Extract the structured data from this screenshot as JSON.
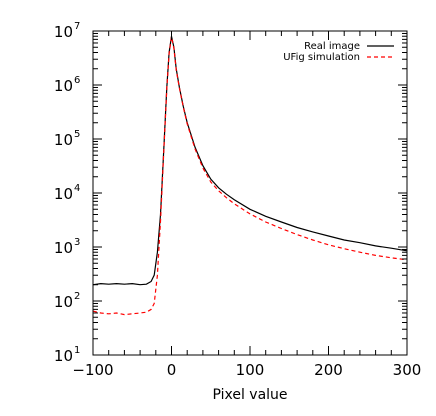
{
  "chart_data": {
    "type": "line",
    "title": "",
    "xlabel": "Pixel value",
    "ylabel": "",
    "xlim": [
      -100,
      300
    ],
    "ylim": [
      10,
      10000000
    ],
    "yscale": "log",
    "grid": false,
    "legend_position": "top-right",
    "x_ticks": [
      {
        "value": -100,
        "label": "−100"
      },
      {
        "value": 0,
        "label": "0"
      },
      {
        "value": 100,
        "label": "100"
      },
      {
        "value": 200,
        "label": "200"
      },
      {
        "value": 300,
        "label": "300"
      }
    ],
    "y_ticks": [
      {
        "value": 10,
        "base": "10",
        "exp": "1"
      },
      {
        "value": 100,
        "base": "10",
        "exp": "2"
      },
      {
        "value": 1000,
        "base": "10",
        "exp": "3"
      },
      {
        "value": 10000,
        "base": "10",
        "exp": "4"
      },
      {
        "value": 100000,
        "base": "10",
        "exp": "5"
      },
      {
        "value": 1000000,
        "base": "10",
        "exp": "6"
      },
      {
        "value": 10000000,
        "base": "10",
        "exp": "7"
      }
    ],
    "series": [
      {
        "name": "Real image",
        "color": "#000000",
        "dash": "solid",
        "x": [
          -100,
          -90,
          -80,
          -70,
          -60,
          -50,
          -40,
          -32,
          -26,
          -22,
          -18,
          -14,
          -10,
          -6,
          -3,
          0,
          3,
          6,
          10,
          15,
          20,
          30,
          40,
          50,
          60,
          70,
          80,
          100,
          120,
          140,
          160,
          180,
          200,
          220,
          240,
          260,
          280,
          300
        ],
        "y": [
          200,
          210,
          205,
          210,
          205,
          210,
          200,
          205,
          230,
          300,
          800,
          4000,
          60000,
          900000,
          4000000,
          8000000,
          5000000,
          2000000,
          900000,
          400000,
          200000,
          70000,
          32000,
          18000,
          12500,
          9500,
          7500,
          5000,
          3700,
          2900,
          2300,
          1900,
          1600,
          1350,
          1200,
          1050,
          950,
          850
        ]
      },
      {
        "name": "UFig simulation",
        "color": "#ff0000",
        "dash": "dashed",
        "x": [
          -100,
          -90,
          -80,
          -70,
          -60,
          -50,
          -40,
          -32,
          -26,
          -22,
          -18,
          -14,
          -10,
          -6,
          -3,
          0,
          3,
          6,
          10,
          15,
          20,
          30,
          40,
          50,
          60,
          70,
          80,
          100,
          120,
          140,
          160,
          180,
          200,
          220,
          240,
          260,
          280,
          300
        ],
        "y": [
          65,
          60,
          58,
          60,
          56,
          58,
          60,
          62,
          70,
          90,
          300,
          3000,
          55000,
          850000,
          3800000,
          7800000,
          4800000,
          1900000,
          880000,
          390000,
          190000,
          65000,
          29000,
          16000,
          11000,
          8200,
          6300,
          4100,
          2900,
          2200,
          1700,
          1350,
          1100,
          930,
          800,
          700,
          630,
          580
        ]
      }
    ]
  }
}
